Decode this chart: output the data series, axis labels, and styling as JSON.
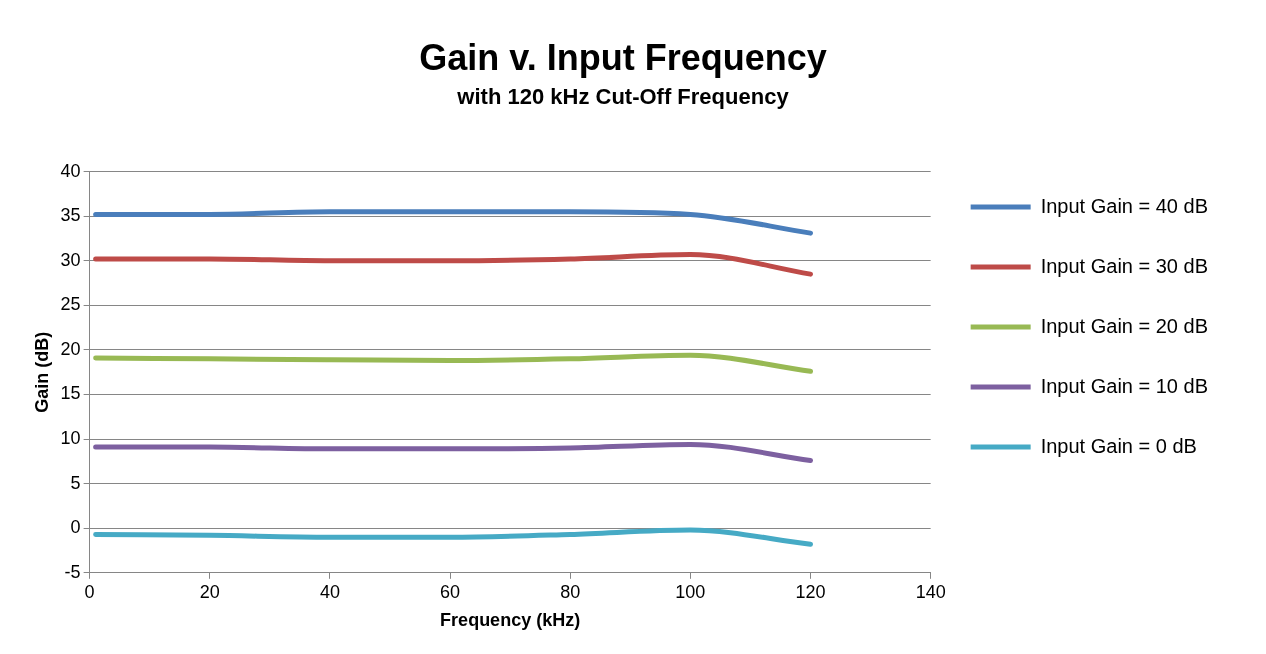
{
  "chart_data": {
    "type": "line",
    "title": "Gain v. Input Frequency",
    "subtitle": "with 120 kHz Cut-Off Frequency",
    "xlabel": "Frequency (kHz)",
    "ylabel": "Gain (dB)",
    "x": [
      1,
      20,
      40,
      60,
      80,
      100,
      120
    ],
    "series": [
      {
        "name": "Input Gain = 40 dB",
        "color": "#4a7ebb",
        "values": [
          35.2,
          35.2,
          35.5,
          35.5,
          35.5,
          35.2,
          33.1
        ]
      },
      {
        "name": "Input Gain = 30 dB",
        "color": "#be4b48",
        "values": [
          30.2,
          30.2,
          30,
          30,
          30.2,
          30.7,
          28.5
        ]
      },
      {
        "name": "Input Gain = 20 dB",
        "color": "#98b954",
        "values": [
          19.1,
          19,
          18.9,
          18.8,
          19,
          19.4,
          17.6
        ]
      },
      {
        "name": "Input Gain = 10 dB",
        "color": "#7d60a0",
        "values": [
          9.1,
          9.1,
          8.9,
          8.9,
          9,
          9.4,
          7.6
        ]
      },
      {
        "name": "Input Gain = 0 dB",
        "color": "#46aac5",
        "values": [
          -0.7,
          -0.8,
          -1,
          -1,
          -0.7,
          -0.2,
          -1.8
        ]
      }
    ],
    "xlim": [
      0,
      140
    ],
    "xticks": [
      0,
      20,
      40,
      60,
      80,
      100,
      120,
      140
    ],
    "ylim": [
      -5,
      40
    ],
    "yticks": [
      -5,
      0,
      5,
      10,
      15,
      20,
      25,
      30,
      35,
      40
    ],
    "grid": "y",
    "legend": "right",
    "marker": "none",
    "line_style": "solid"
  }
}
